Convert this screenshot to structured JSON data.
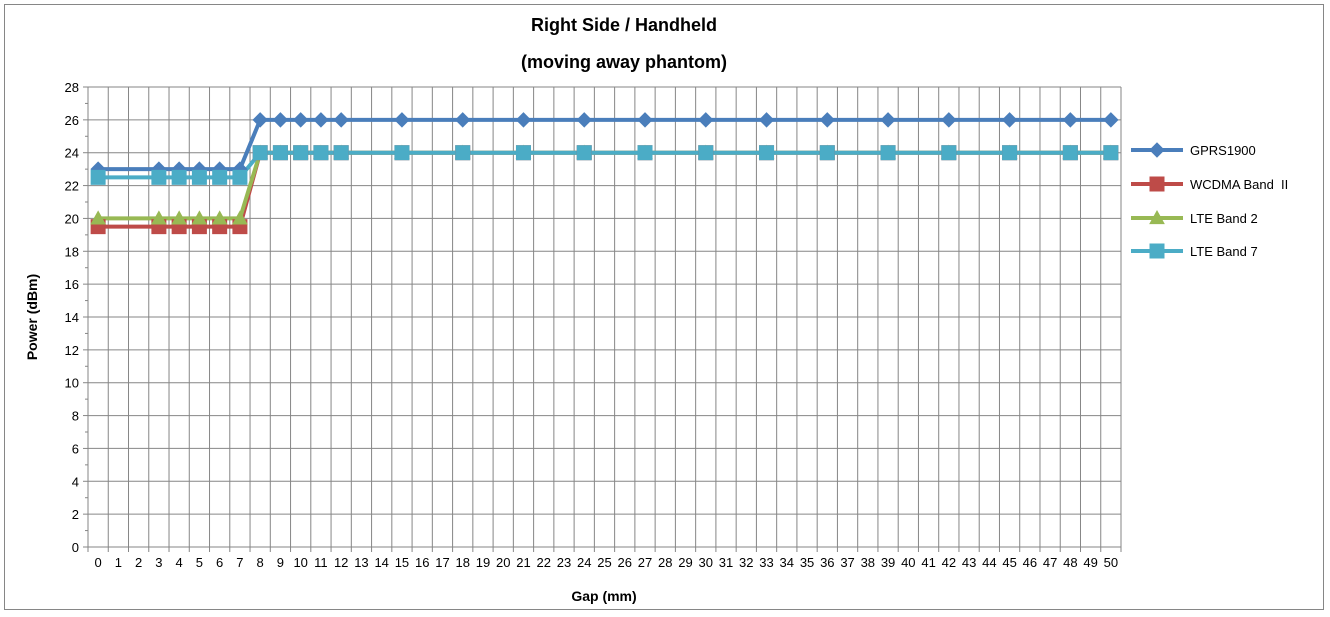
{
  "chart_data": {
    "type": "line",
    "title": "Right Side / Handheld",
    "subtitle": "(moving away phantom)",
    "xlabel": "Gap (mm)",
    "ylabel": "Power (dBm)",
    "x_categories": [
      "0",
      "1",
      "2",
      "3",
      "4",
      "5",
      "6",
      "7",
      "8",
      "9",
      "10",
      "11",
      "12",
      "13",
      "14",
      "15",
      "16",
      "17",
      "18",
      "19",
      "20",
      "21",
      "22",
      "23",
      "24",
      "25",
      "26",
      "27",
      "28",
      "29",
      "30",
      "31",
      "32",
      "33",
      "34",
      "35",
      "36",
      "37",
      "38",
      "39",
      "40",
      "41",
      "42",
      "43",
      "44",
      "45",
      "46",
      "47",
      "48",
      "49",
      "50"
    ],
    "x": [
      0,
      3,
      4,
      5,
      6,
      7,
      8,
      9,
      10,
      11,
      12,
      15,
      18,
      21,
      24,
      27,
      30,
      33,
      36,
      39,
      42,
      45,
      48,
      50
    ],
    "ylim": [
      0,
      28
    ],
    "y_ticks": [
      "0",
      "2",
      "4",
      "6",
      "8",
      "10",
      "12",
      "14",
      "16",
      "18",
      "20",
      "22",
      "24",
      "26",
      "28"
    ],
    "grid": true,
    "legend_position": "right",
    "series": [
      {
        "name": "GPRS1900",
        "color": "#4A7EBB",
        "marker": "diamond",
        "values": [
          23,
          23,
          23,
          23,
          23,
          23,
          26,
          26,
          26,
          26,
          26,
          26,
          26,
          26,
          26,
          26,
          26,
          26,
          26,
          26,
          26,
          26,
          26,
          26
        ]
      },
      {
        "name": "WCDMA Band  II",
        "color": "#BE4B48",
        "marker": "square",
        "values": [
          19.5,
          19.5,
          19.5,
          19.5,
          19.5,
          19.5,
          24,
          24,
          24,
          24,
          24,
          24,
          24,
          24,
          24,
          24,
          24,
          24,
          24,
          24,
          24,
          24,
          24,
          24
        ]
      },
      {
        "name": "LTE Band 2",
        "color": "#98B954",
        "marker": "triangle",
        "values": [
          20,
          20,
          20,
          20,
          20,
          20,
          24,
          24,
          24,
          24,
          24,
          24,
          24,
          24,
          24,
          24,
          24,
          24,
          24,
          24,
          24,
          24,
          24,
          24
        ]
      },
      {
        "name": "LTE Band 7",
        "color": "#4BACC6",
        "marker": "square",
        "values": [
          22.5,
          22.5,
          22.5,
          22.5,
          22.5,
          22.5,
          24,
          24,
          24,
          24,
          24,
          24,
          24,
          24,
          24,
          24,
          24,
          24,
          24,
          24,
          24,
          24,
          24,
          24
        ]
      }
    ]
  }
}
